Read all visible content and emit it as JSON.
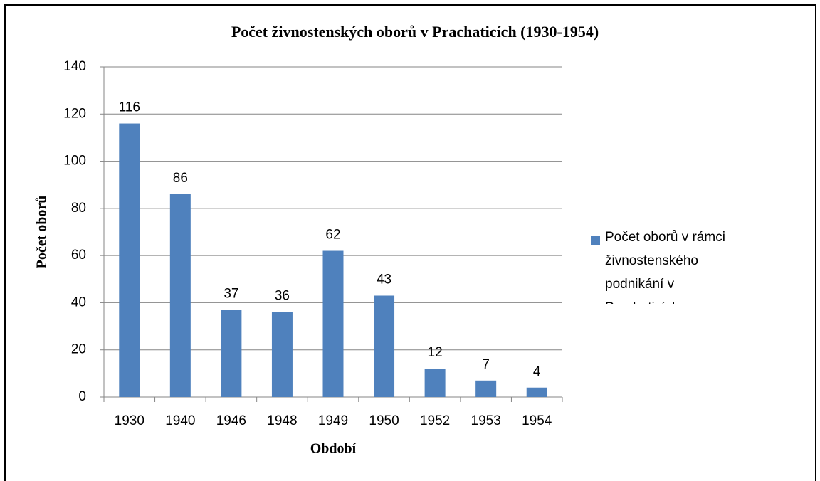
{
  "chart_data": {
    "type": "bar",
    "title": "Počet živnostenských oborů v Prachaticích (1930-1954)",
    "x_label": "Období",
    "y_label": "Počet oborů",
    "categories": [
      "1930",
      "1940",
      "1946",
      "1948",
      "1949",
      "1950",
      "1952",
      "1953",
      "1954"
    ],
    "series": [
      {
        "name": "Počet oborů v rámci živnostenského podnikání v Prachaticích",
        "color": "#4f81bd",
        "values": [
          116,
          86,
          37,
          36,
          62,
          43,
          12,
          7,
          4
        ]
      }
    ],
    "ylim": [
      0,
      140
    ],
    "yticks": [
      0,
      20,
      40,
      60,
      80,
      100,
      120,
      140
    ],
    "grid": true,
    "legend": "right"
  }
}
